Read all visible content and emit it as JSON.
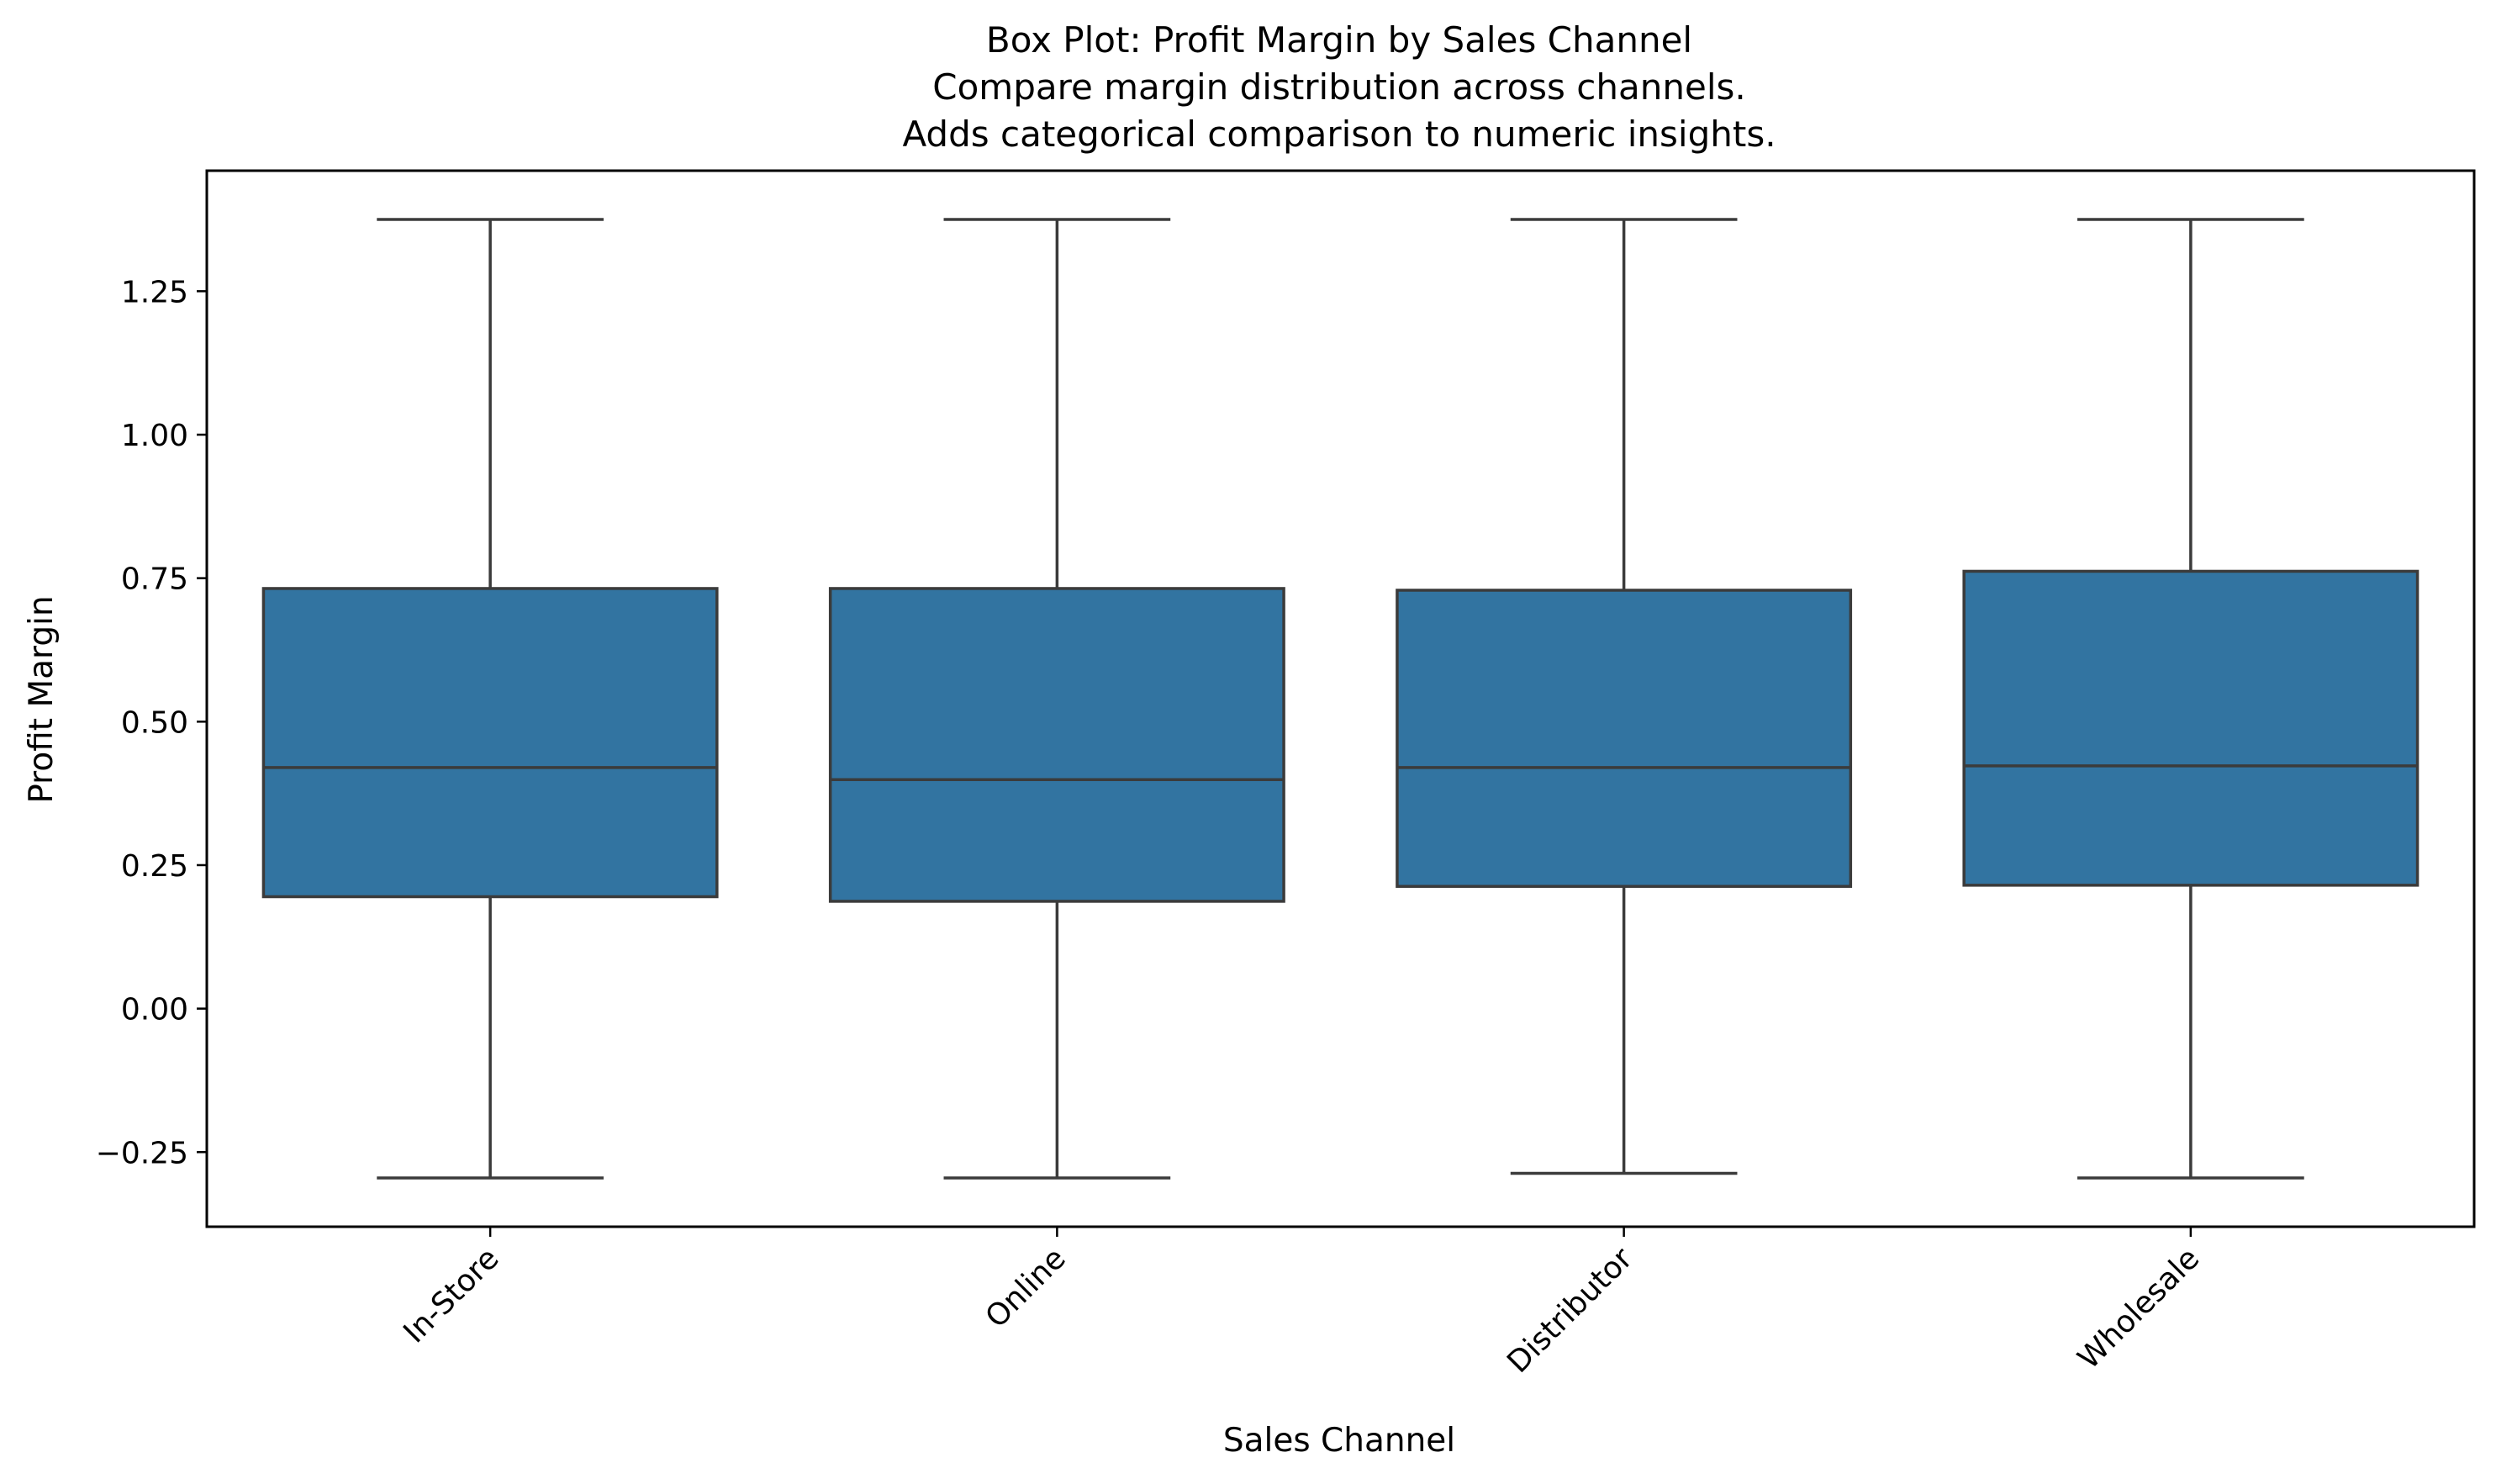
{
  "chart_data": {
    "type": "box",
    "title_lines": [
      "Box Plot: Profit Margin by Sales Channel",
      "Compare margin distribution across channels.",
      "Adds categorical comparison to numeric insights."
    ],
    "xlabel": "Sales Channel",
    "ylabel": "Profit Margin",
    "ylim": [
      -0.38,
      1.46
    ],
    "yticks": [
      -0.25,
      0.0,
      0.25,
      0.5,
      0.75,
      1.0,
      1.25
    ],
    "ytick_labels": [
      "−0.25",
      "0.00",
      "0.25",
      "0.50",
      "0.75",
      "1.00",
      "1.25"
    ],
    "xtick_rotation_deg": 45,
    "grid": false,
    "box_color": "#3274a1",
    "line_color": "#3b3b3b",
    "categories": [
      "In-Store",
      "Online",
      "Distributor",
      "Wholesale"
    ],
    "boxes": [
      {
        "category": "In-Store",
        "whisker_low": -0.295,
        "q1": 0.195,
        "median": 0.42,
        "q3": 0.732,
        "whisker_high": 1.375
      },
      {
        "category": "Online",
        "whisker_low": -0.295,
        "q1": 0.187,
        "median": 0.399,
        "q3": 0.732,
        "whisker_high": 1.375
      },
      {
        "category": "Distributor",
        "whisker_low": -0.287,
        "q1": 0.213,
        "median": 0.42,
        "q3": 0.729,
        "whisker_high": 1.375
      },
      {
        "category": "Wholesale",
        "whisker_low": -0.295,
        "q1": 0.215,
        "median": 0.423,
        "q3": 0.762,
        "whisker_high": 1.375
      }
    ]
  }
}
